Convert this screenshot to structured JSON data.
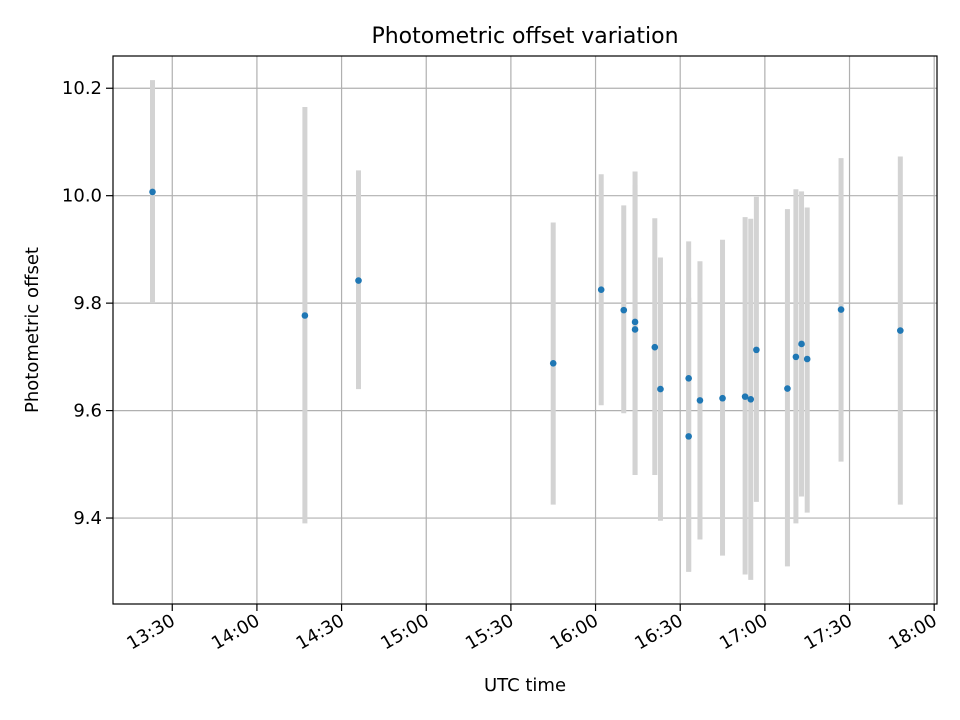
{
  "chart_data": {
    "type": "scatter",
    "title": "Photometric offset variation",
    "xlabel": "UTC time",
    "ylabel": "Photometric offset",
    "x_ticks": [
      "13:30",
      "14:00",
      "14:30",
      "15:00",
      "15:30",
      "16:00",
      "16:30",
      "17:00",
      "17:30",
      "18:00"
    ],
    "y_ticks": [
      "9.4",
      "9.6",
      "9.8",
      "10.0",
      "10.2"
    ],
    "xlim": [
      "13:09",
      "18:01"
    ],
    "ylim": [
      9.24,
      10.26
    ],
    "grid": true,
    "point_color": "#1f77b4",
    "errorbar_color": "#d3d3d3",
    "points": [
      {
        "x": "13:23",
        "y": 10.007,
        "yerr_low": 9.8,
        "yerr_high": 10.215
      },
      {
        "x": "14:17",
        "y": 9.777,
        "yerr_low": 9.39,
        "yerr_high": 10.165
      },
      {
        "x": "14:36",
        "y": 9.842,
        "yerr_low": 9.64,
        "yerr_high": 10.047
      },
      {
        "x": "15:45",
        "y": 9.688,
        "yerr_low": 9.425,
        "yerr_high": 9.95
      },
      {
        "x": "16:02",
        "y": 9.825,
        "yerr_low": 9.61,
        "yerr_high": 10.04
      },
      {
        "x": "16:10",
        "y": 9.787,
        "yerr_low": 9.595,
        "yerr_high": 9.982
      },
      {
        "x": "16:14",
        "y": 9.765,
        "yerr_low": 9.48,
        "yerr_high": 10.045
      },
      {
        "x": "16:14",
        "y": 9.751,
        "yerr_low": 9.48,
        "yerr_high": 10.02
      },
      {
        "x": "16:21",
        "y": 9.718,
        "yerr_low": 9.48,
        "yerr_high": 9.958
      },
      {
        "x": "16:23",
        "y": 9.64,
        "yerr_low": 9.395,
        "yerr_high": 9.885
      },
      {
        "x": "16:33",
        "y": 9.66,
        "yerr_low": 9.3,
        "yerr_high": 9.915
      },
      {
        "x": "16:33",
        "y": 9.552,
        "yerr_low": 9.3,
        "yerr_high": 9.81
      },
      {
        "x": "16:37",
        "y": 9.619,
        "yerr_low": 9.36,
        "yerr_high": 9.878
      },
      {
        "x": "16:45",
        "y": 9.623,
        "yerr_low": 9.33,
        "yerr_high": 9.918
      },
      {
        "x": "16:53",
        "y": 9.626,
        "yerr_low": 9.295,
        "yerr_high": 9.96
      },
      {
        "x": "16:55",
        "y": 9.621,
        "yerr_low": 9.285,
        "yerr_high": 9.957
      },
      {
        "x": "16:57",
        "y": 9.713,
        "yerr_low": 9.43,
        "yerr_high": 9.998
      },
      {
        "x": "17:08",
        "y": 9.641,
        "yerr_low": 9.31,
        "yerr_high": 9.975
      },
      {
        "x": "17:11",
        "y": 9.7,
        "yerr_low": 9.39,
        "yerr_high": 10.012
      },
      {
        "x": "17:13",
        "y": 9.724,
        "yerr_low": 9.44,
        "yerr_high": 10.008
      },
      {
        "x": "17:15",
        "y": 9.696,
        "yerr_low": 9.41,
        "yerr_high": 9.978
      },
      {
        "x": "17:27",
        "y": 9.788,
        "yerr_low": 9.505,
        "yerr_high": 10.07
      },
      {
        "x": "17:48",
        "y": 9.749,
        "yerr_low": 9.425,
        "yerr_high": 10.073
      }
    ]
  }
}
